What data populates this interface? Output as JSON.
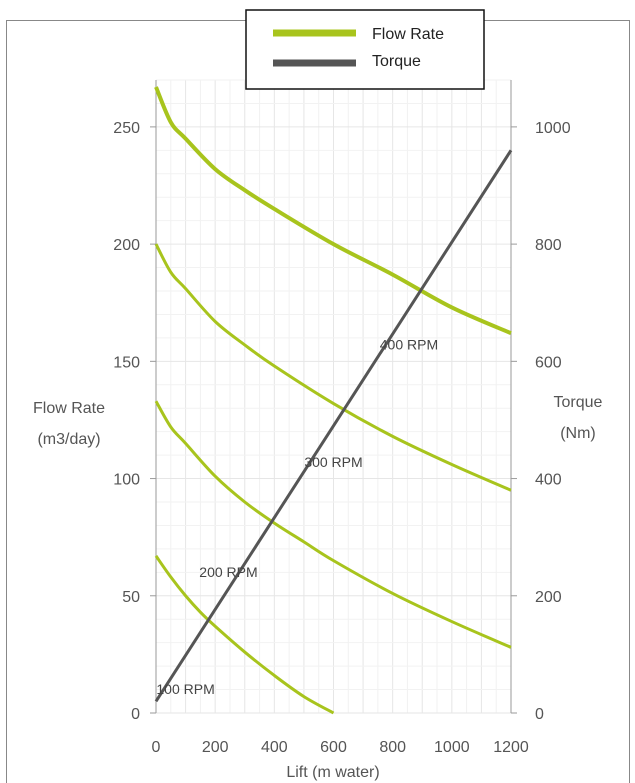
{
  "chart_data": {
    "type": "line",
    "xlabel": "Lift (m water)",
    "ylabel_left": [
      "Flow Rate",
      "(m3/day)"
    ],
    "ylabel_right": [
      "Torque",
      "(Nm)"
    ],
    "xlim": [
      0,
      1200
    ],
    "ylim_left": [
      0,
      270
    ],
    "ylim_right": [
      0,
      1080
    ],
    "x_ticks": [
      0,
      200,
      400,
      600,
      800,
      1000,
      1200
    ],
    "y_left_ticks": [
      0,
      50,
      100,
      150,
      200,
      250
    ],
    "y_right_ticks": [
      0,
      200,
      400,
      600,
      800,
      1000
    ],
    "grid": true,
    "legend": {
      "position": "top-center",
      "entries": [
        {
          "name": "Flow Rate",
          "color": "#a8c41d"
        },
        {
          "name": "Torque",
          "color": "#555555"
        }
      ]
    },
    "series": [
      {
        "name": "Flow Rate",
        "rpm_label": "100 RPM",
        "color": "#a8c41d",
        "axis": "left",
        "x": [
          0,
          50,
          100,
          150,
          200,
          300,
          400,
          500,
          600
        ],
        "y": [
          67,
          58,
          50,
          43,
          37,
          26,
          16,
          7,
          0
        ]
      },
      {
        "name": "Flow Rate",
        "rpm_label": "200 RPM",
        "color": "#a8c41d",
        "axis": "left",
        "x": [
          0,
          50,
          100,
          200,
          300,
          400,
          500,
          600,
          800,
          1000,
          1200
        ],
        "y": [
          133,
          122,
          115,
          101,
          90,
          81,
          73,
          65,
          51,
          39,
          28
        ]
      },
      {
        "name": "Flow Rate",
        "rpm_label": "300 RPM",
        "color": "#a8c41d",
        "axis": "left",
        "x": [
          0,
          50,
          100,
          200,
          300,
          400,
          600,
          800,
          1000,
          1200
        ],
        "y": [
          200,
          188,
          181,
          167,
          157,
          148,
          132,
          118,
          106,
          95
        ]
      },
      {
        "name": "Flow Rate",
        "rpm_label": "400 RPM",
        "color": "#a8c41d",
        "axis": "left",
        "x": [
          0,
          50,
          100,
          200,
          300,
          400,
          600,
          800,
          1000,
          1200
        ],
        "y": [
          267,
          252,
          245,
          232,
          223,
          215,
          200,
          187,
          173,
          162
        ]
      },
      {
        "name": "Torque",
        "color": "#555555",
        "axis": "right",
        "x": [
          0,
          1200
        ],
        "y": [
          20,
          960
        ]
      }
    ],
    "annotations": [
      {
        "text": "100 RPM",
        "x": 100,
        "y": 8
      },
      {
        "text": "200 RPM",
        "x": 245,
        "y": 58
      },
      {
        "text": "300 RPM",
        "x": 600,
        "y": 105
      },
      {
        "text": "400 RPM",
        "x": 855,
        "y": 155
      }
    ]
  }
}
